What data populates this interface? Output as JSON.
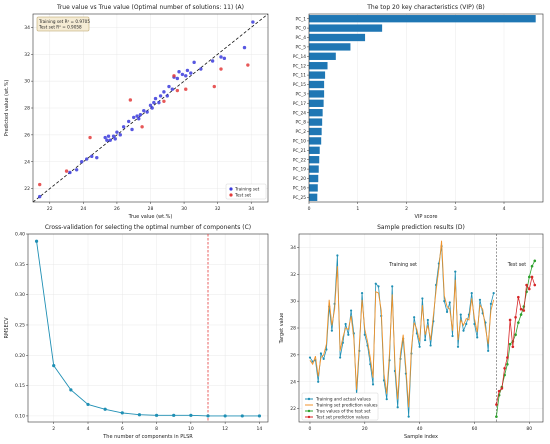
{
  "chart_data": [
    {
      "type": "scatter",
      "title": "True value vs True value (Optimal number of solutions: 11) (A)",
      "xlabel": "True value (wt.%)",
      "ylabel": "Predicted value (wt.%)",
      "xlim": [
        21,
        35
      ],
      "ylim": [
        21,
        35
      ],
      "xticks": [
        "22",
        "24",
        "26",
        "28",
        "30",
        "32",
        "34"
      ],
      "yticks": [
        "22",
        "24",
        "26",
        "28",
        "30",
        "32",
        "34"
      ],
      "annotation": [
        "Training set R² = 0.9705",
        "Test set R² = 0.9058"
      ],
      "legend": "bottom-right",
      "grid": true,
      "series": [
        {
          "name": "Training set",
          "color": "#3b3bdc",
          "points": [
            [
              21.4,
              21.4
            ],
            [
              23.2,
              23.2
            ],
            [
              23.6,
              23.4
            ],
            [
              23.9,
              24.0
            ],
            [
              24.2,
              24.2
            ],
            [
              24.5,
              24.4
            ],
            [
              25.3,
              25.8
            ],
            [
              25.4,
              25.6
            ],
            [
              25.5,
              25.9
            ],
            [
              25.6,
              25.6
            ],
            [
              25.8,
              25.9
            ],
            [
              26.0,
              26.2
            ],
            [
              26.2,
              26.0
            ],
            [
              26.4,
              26.6
            ],
            [
              26.7,
              27.0
            ],
            [
              27.0,
              27.3
            ],
            [
              27.2,
              27.4
            ],
            [
              27.4,
              27.5
            ],
            [
              27.6,
              27.8
            ],
            [
              27.8,
              27.7
            ],
            [
              28.0,
              28.2
            ],
            [
              28.2,
              28.4
            ],
            [
              28.3,
              28.7
            ],
            [
              28.5,
              28.4
            ],
            [
              28.6,
              28.9
            ],
            [
              28.8,
              29.2
            ],
            [
              29.0,
              28.9
            ],
            [
              29.1,
              29.6
            ],
            [
              29.3,
              29.4
            ],
            [
              29.4,
              30.3
            ],
            [
              29.6,
              30.2
            ],
            [
              29.7,
              30.7
            ],
            [
              29.9,
              30.5
            ],
            [
              30.1,
              30.4
            ],
            [
              30.2,
              30.8
            ],
            [
              30.4,
              30.6
            ],
            [
              30.6,
              31.4
            ],
            [
              31.0,
              30.9
            ],
            [
              31.7,
              31.5
            ],
            [
              32.2,
              31.8
            ],
            [
              32.4,
              31.7
            ],
            [
              33.6,
              32.5
            ],
            [
              34.1,
              34.4
            ],
            [
              28.1,
              28.0
            ],
            [
              26.9,
              26.4
            ],
            [
              27.3,
              27.2
            ],
            [
              25.9,
              25.7
            ],
            [
              24.8,
              24.3
            ]
          ]
        },
        {
          "name": "Test set",
          "color": "#e33b3b",
          "points": [
            [
              21.4,
              22.3
            ],
            [
              23.0,
              23.3
            ],
            [
              24.4,
              25.8
            ],
            [
              26.8,
              28.6
            ],
            [
              27.5,
              26.6
            ],
            [
              28.8,
              28.5
            ],
            [
              29.4,
              30.4
            ],
            [
              29.6,
              29.3
            ],
            [
              30.1,
              29.4
            ],
            [
              31.8,
              29.6
            ],
            [
              32.2,
              30.9
            ],
            [
              33.8,
              31.2
            ]
          ]
        }
      ]
    },
    {
      "type": "bar",
      "orientation": "horizontal",
      "title": "The top 20 key characteristics (VIP) (B)",
      "xlabel": "VIP score",
      "xlim": [
        0,
        4.8
      ],
      "xticks": [
        "0",
        "1",
        "2",
        "3",
        "4"
      ],
      "color": "#1f77b4",
      "grid": true,
      "categories": [
        "PC_1",
        "PC_0",
        "PC_4",
        "PC_5",
        "PC_14",
        "PC_12",
        "PC_11",
        "PC_15",
        "PC_3",
        "PC_17",
        "PC_24",
        "PC_8",
        "PC_2",
        "PC_10",
        "PC_21",
        "PC_22",
        "PC_19",
        "PC_20",
        "PC_16",
        "PC_25"
      ],
      "values": [
        4.65,
        1.5,
        1.15,
        0.85,
        0.55,
        0.38,
        0.33,
        0.31,
        0.31,
        0.3,
        0.28,
        0.27,
        0.26,
        0.25,
        0.22,
        0.21,
        0.2,
        0.19,
        0.18,
        0.17
      ]
    },
    {
      "type": "line",
      "title": "Cross-validation for selecting the optimal number of components (C)",
      "xlabel": "The number of components in PLSR",
      "ylabel": "RMSECV",
      "xlim": [
        0.5,
        14.5
      ],
      "ylim": [
        0.09,
        0.4
      ],
      "xticks": [
        "2",
        "4",
        "6",
        "8",
        "10",
        "12",
        "14"
      ],
      "yticks": [
        "0.10",
        "0.15",
        "0.20",
        "0.25",
        "0.30",
        "0.35",
        "0.40"
      ],
      "color": "#1f8fb4",
      "vline": 11,
      "vline_color": "#e33b3b",
      "grid": true,
      "x": [
        1,
        2,
        3,
        4,
        5,
        6,
        7,
        8,
        9,
        10,
        11,
        12,
        13,
        14
      ],
      "y": [
        0.388,
        0.183,
        0.143,
        0.119,
        0.111,
        0.105,
        0.102,
        0.101,
        0.101,
        0.101,
        0.1,
        0.1,
        0.1,
        0.1
      ]
    },
    {
      "type": "line",
      "title": "Sample prediction results (D)",
      "xlabel": "Sample index",
      "ylabel": "Target value",
      "xlim": [
        -4,
        85
      ],
      "ylim": [
        21,
        35
      ],
      "xticks": [
        "0",
        "20",
        "40",
        "60",
        "80"
      ],
      "yticks": [
        "22",
        "24",
        "26",
        "28",
        "30",
        "32",
        "34"
      ],
      "vline": 68,
      "labels": [
        "Training set",
        "Test set"
      ],
      "legend": "bottom-left",
      "grid": true,
      "series": [
        {
          "name": "Training and actual values",
          "color": "#1f8fb4",
          "x": [
            0,
            1,
            2,
            3,
            4,
            5,
            6,
            7,
            8,
            9,
            10,
            11,
            12,
            13,
            14,
            15,
            16,
            17,
            18,
            19,
            20,
            21,
            22,
            23,
            24,
            25,
            26,
            27,
            28,
            29,
            30,
            31,
            32,
            33,
            34,
            35,
            36,
            37,
            38,
            39,
            40,
            41,
            42,
            43,
            44,
            45,
            46,
            47,
            48,
            49,
            50,
            51,
            52,
            53,
            54,
            55,
            56,
            57,
            58,
            59,
            60,
            61,
            62,
            63,
            64,
            65,
            66,
            67
          ],
          "y": [
            25.8,
            25.5,
            25.6,
            24.0,
            26.1,
            25.7,
            26.4,
            29.6,
            27.8,
            29.8,
            33.4,
            25.8,
            26.9,
            28.3,
            27.5,
            29.3,
            27.6,
            22.9,
            26.3,
            30.6,
            27.5,
            26.7,
            25.3,
            23.8,
            31.3,
            31.1,
            28.9,
            24.1,
            22.7,
            25.6,
            31.1,
            24.8,
            22.1,
            25.7,
            27.2,
            24.6,
            21.4,
            26.1,
            28.8,
            27.6,
            26.6,
            30.2,
            27.1,
            28.6,
            26.7,
            28.5,
            31.2,
            32.8,
            34.1,
            30.0,
            29.2,
            29.9,
            27.4,
            32.2,
            26.6,
            29.0,
            27.8,
            28.3,
            29.0,
            30.6,
            28.3,
            27.3,
            30.1,
            29.1,
            28.4,
            26.3,
            29.8,
            30.6
          ]
        },
        {
          "name": "Training set prediction values",
          "color": "#f0932b",
          "x": [
            0,
            1,
            2,
            3,
            4,
            5,
            6,
            7,
            8,
            9,
            10,
            11,
            12,
            13,
            14,
            15,
            16,
            17,
            18,
            19,
            20,
            21,
            22,
            23,
            24,
            25,
            26,
            27,
            28,
            29,
            30,
            31,
            32,
            33,
            34,
            35,
            36,
            37,
            38,
            39,
            40,
            41,
            42,
            43,
            44,
            45,
            46,
            47,
            48,
            49,
            50,
            51,
            52,
            53,
            54,
            55,
            56,
            57,
            58,
            59,
            60,
            61,
            62,
            63,
            64,
            65,
            66,
            67
          ],
          "y": [
            25.6,
            25.3,
            25.9,
            24.4,
            25.8,
            26.0,
            26.8,
            30.1,
            28.2,
            29.4,
            32.6,
            26.3,
            27.3,
            28.0,
            27.9,
            28.9,
            27.2,
            23.4,
            26.7,
            30.1,
            27.9,
            27.0,
            25.8,
            24.3,
            30.7,
            30.6,
            29.3,
            24.6,
            23.1,
            26.1,
            30.5,
            25.3,
            22.7,
            26.1,
            27.5,
            25.0,
            22.1,
            26.5,
            28.4,
            27.9,
            27.0,
            29.7,
            27.5,
            28.2,
            27.1,
            28.9,
            30.8,
            32.4,
            34.5,
            30.4,
            29.6,
            29.4,
            27.8,
            31.6,
            27.1,
            28.6,
            28.2,
            28.7,
            28.6,
            30.2,
            28.7,
            27.7,
            29.7,
            29.4,
            28.0,
            26.8,
            29.3,
            30.1
          ]
        },
        {
          "name": "True values of the test set",
          "color": "#2ca02c",
          "x": [
            68,
            69,
            70,
            71,
            72,
            73,
            74,
            75,
            76,
            77,
            78,
            79,
            80,
            81,
            82
          ],
          "y": [
            21.4,
            23.0,
            23.6,
            24.5,
            25.3,
            26.8,
            27.0,
            27.5,
            28.4,
            29.0,
            29.6,
            30.7,
            31.8,
            32.6,
            33.0
          ]
        },
        {
          "name": "Test set prediction values",
          "color": "#d62728",
          "x": [
            68,
            69,
            70,
            71,
            72,
            73,
            74,
            75,
            76,
            77,
            78,
            79,
            80,
            81,
            82
          ],
          "y": [
            22.3,
            23.3,
            23.5,
            25.0,
            25.8,
            28.6,
            26.6,
            28.8,
            30.3,
            29.4,
            29.3,
            31.2,
            30.9,
            31.8,
            31.2
          ]
        }
      ]
    }
  ]
}
